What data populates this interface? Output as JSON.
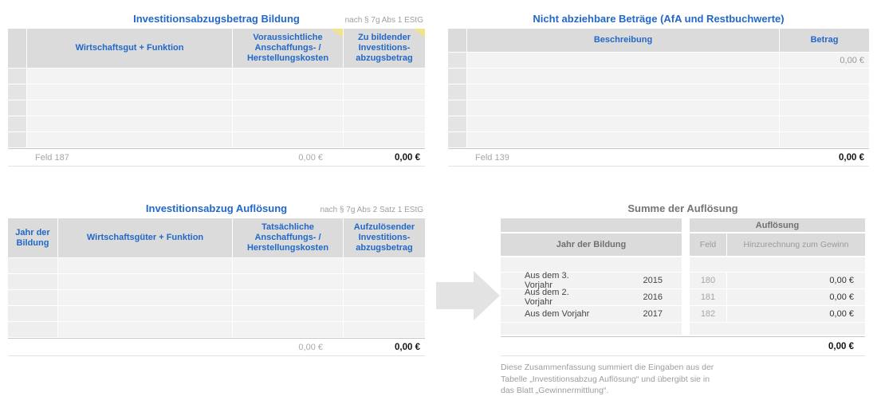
{
  "tables": {
    "bildung": {
      "title": "Investitionsabzugsbetrag Bildung",
      "law_ref": "nach § 7g Abs 1 EStG",
      "columns": [
        "Wirtschaftsgut + Funktion",
        "Voraussichtliche\nAnschaffungs- /\nHerstellungskosten",
        "Zu bildender\nInvestitions-\nabzugsbetrag"
      ],
      "empty_row_count": 5,
      "footer": {
        "label": "Feld 187",
        "sum_costs": "0,00 €",
        "sum_amount": "0,00 €"
      }
    },
    "nicht_abziehbar": {
      "title": "Nicht abziehbare Beträge (AfA und Restbuchwerte)",
      "columns": [
        "Beschreibung",
        "Betrag"
      ],
      "row_count": 6,
      "row_values": {
        "0": "0,00 €"
      },
      "footer": {
        "label": "Feld 139",
        "sum": "0,00 €"
      }
    },
    "aufloesung": {
      "title": "Investitionsabzug Auflösung",
      "law_ref": "nach § 7g Abs 2 Satz 1 EStG",
      "columns": [
        "Jahr der\nBildung",
        "Wirtschaftsgüter + Funktion",
        "Tatsächliche\nAnschaffungs- /\nHerstellungskosten",
        "Aufzulösender\nInvestitions-\nabzugsbetrag"
      ],
      "empty_row_count": 5,
      "footer": {
        "sum_costs": "0,00 €",
        "sum_amount": "0,00 €"
      }
    },
    "summe": {
      "title": "Summe der Auflösung",
      "left_header": "Jahr der Bildung",
      "right_group_header": "Auflösung",
      "right_columns": [
        "Feld",
        "Hinzurechnung zum Gewinn"
      ],
      "rows": [
        {
          "label": "Aus dem 3. Vorjahr",
          "year": "2015",
          "feld": "180",
          "amount": "0,00 €"
        },
        {
          "label": "Aus dem 2. Vorjahr",
          "year": "2016",
          "feld": "181",
          "amount": "0,00 €"
        },
        {
          "label": "Aus dem Vorjahr",
          "year": "2017",
          "feld": "182",
          "amount": "0,00 €"
        }
      ],
      "total": "0,00 €",
      "footnote": "Diese Zusammenfassung summiert die Eingaben aus der\nTabelle „Investitionsabzug Auflösung“ und übergibt sie in\ndas Blatt „Gewinnermittlung“."
    }
  },
  "colors": {
    "accent_blue": "#2268c8",
    "header_bg": "#dbdbdb",
    "row_bg": "#f3f3f3",
    "gutter_bg": "#e4e4e4",
    "comment_marker_yellow": "#f1e38b",
    "arrow_gray": "#e3e3e3",
    "muted_text": "#9e9e9e"
  }
}
